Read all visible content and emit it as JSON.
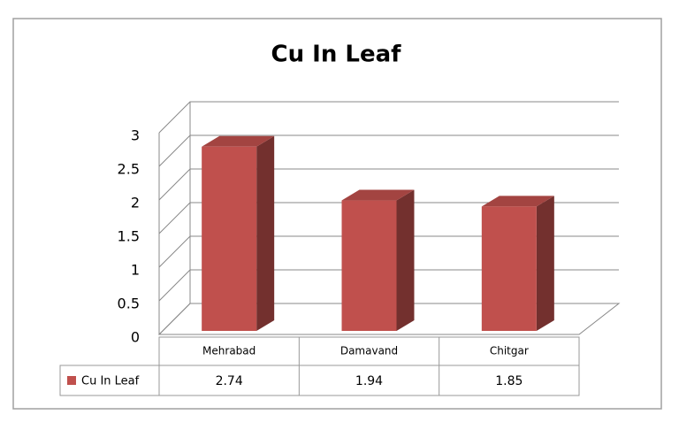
{
  "chart_data": {
    "type": "bar",
    "title": "Cu In Leaf",
    "categories": [
      "Mehrabad",
      "Damavand",
      "Chitgar"
    ],
    "series": [
      {
        "name": "Cu In Leaf",
        "color": "#c0504d",
        "values": [
          2.74,
          1.94,
          1.85
        ]
      }
    ],
    "ylim": [
      0,
      3
    ],
    "yticks": [
      0,
      0.5,
      1,
      1.5,
      2,
      2.5,
      3
    ],
    "grid": true,
    "data_table": true
  }
}
